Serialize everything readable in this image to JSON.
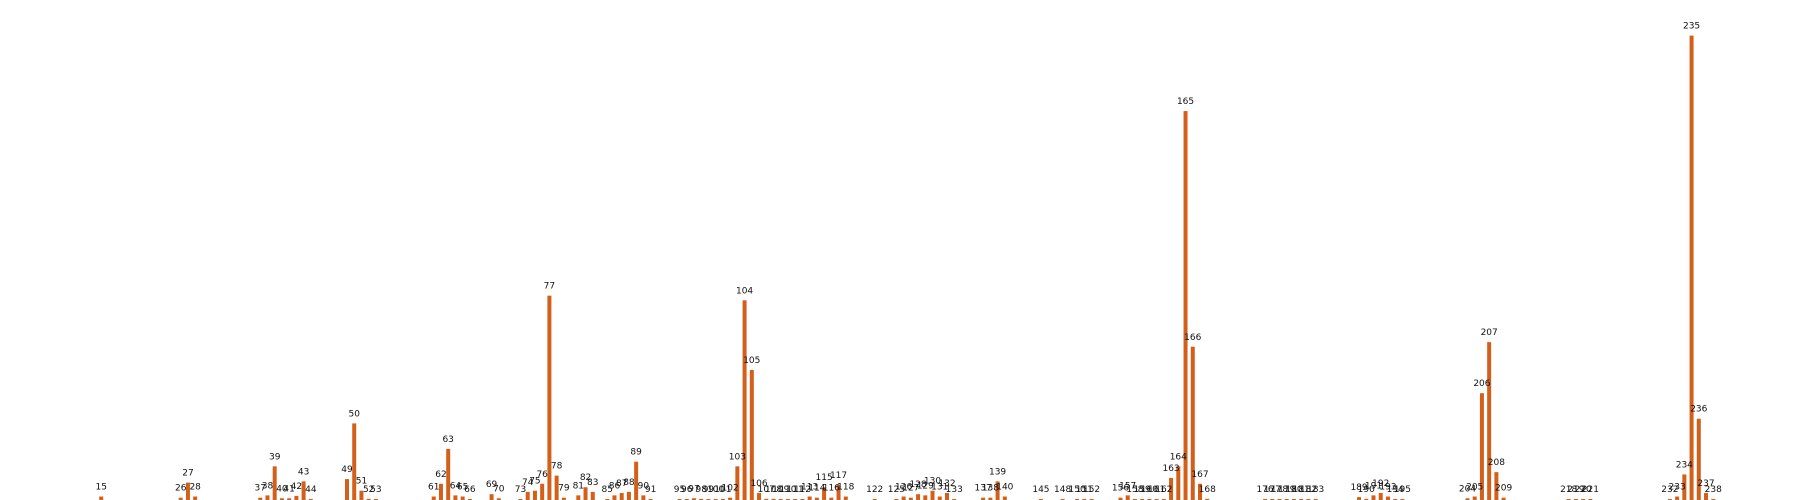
{
  "chart_data": {
    "type": "bar",
    "title": "",
    "xlabel": "",
    "ylabel": "",
    "grid": false,
    "legend": "none",
    "categories": [
      "15",
      "26",
      "27",
      "28",
      "37",
      "38",
      "39",
      "40",
      "41",
      "42",
      "43",
      "44",
      "49",
      "50",
      "51",
      "52",
      "53",
      "61",
      "62",
      "63",
      "64",
      "65",
      "66",
      "69",
      "70",
      "73",
      "74",
      "75",
      "76",
      "77",
      "78",
      "79",
      "81",
      "82",
      "83",
      "85",
      "86",
      "87",
      "88",
      "89",
      "90",
      "91",
      "95",
      "96",
      "97",
      "98",
      "99",
      "100",
      "101",
      "102",
      "103",
      "104",
      "105",
      "106",
      "107",
      "108",
      "109",
      "110",
      "111",
      "112",
      "113",
      "114",
      "115",
      "116",
      "117",
      "118",
      "122",
      "125",
      "126",
      "127",
      "128",
      "129",
      "130",
      "131",
      "132",
      "133",
      "137",
      "138",
      "139",
      "140",
      "145",
      "148",
      "150",
      "151",
      "152",
      "156",
      "157",
      "158",
      "159",
      "160",
      "161",
      "162",
      "163",
      "164",
      "165",
      "166",
      "167",
      "168",
      "176",
      "177",
      "178",
      "179",
      "180",
      "181",
      "182",
      "183",
      "189",
      "190",
      "191",
      "192",
      "193",
      "194",
      "195",
      "204",
      "205",
      "206",
      "207",
      "208",
      "209",
      "218",
      "219",
      "220",
      "221",
      "232",
      "233",
      "234",
      "235",
      "236",
      "237",
      "238"
    ],
    "x": [
      15,
      26,
      27,
      28,
      37,
      38,
      39,
      40,
      41,
      42,
      43,
      44,
      49,
      50,
      51,
      52,
      53,
      61,
      62,
      63,
      64,
      65,
      66,
      69,
      70,
      73,
      74,
      75,
      76,
      77,
      78,
      79,
      81,
      82,
      83,
      85,
      86,
      87,
      88,
      89,
      90,
      91,
      95,
      96,
      97,
      98,
      99,
      100,
      101,
      102,
      103,
      104,
      105,
      106,
      107,
      108,
      109,
      110,
      111,
      112,
      113,
      114,
      115,
      116,
      117,
      118,
      122,
      125,
      126,
      127,
      128,
      129,
      130,
      131,
      132,
      133,
      137,
      138,
      139,
      140,
      145,
      148,
      150,
      151,
      152,
      156,
      157,
      158,
      159,
      160,
      161,
      162,
      163,
      164,
      165,
      166,
      167,
      168,
      176,
      177,
      178,
      179,
      180,
      181,
      182,
      183,
      189,
      190,
      191,
      192,
      193,
      194,
      195,
      204,
      205,
      206,
      207,
      208,
      209,
      218,
      219,
      220,
      221,
      232,
      233,
      234,
      235,
      236,
      237,
      238
    ],
    "values": [
      0.3,
      0.2,
      1.5,
      0.3,
      0.2,
      0.4,
      2.9,
      0.15,
      0.15,
      0.35,
      1.6,
      0.05,
      1.8,
      6.6,
      0.8,
      0.1,
      0.05,
      0.3,
      1.4,
      4.4,
      0.4,
      0.3,
      0.02,
      0.5,
      0.15,
      0.05,
      0.7,
      0.8,
      1.4,
      17.6,
      2.1,
      0.2,
      0.4,
      1.1,
      0.7,
      0.05,
      0.4,
      0.6,
      0.7,
      3.3,
      0.4,
      0.05,
      0.05,
      0.05,
      0.15,
      0.1,
      0.05,
      0.05,
      0.05,
      0.2,
      2.9,
      17.2,
      11.2,
      0.6,
      0.1,
      0.1,
      0.05,
      0.05,
      0.05,
      0.05,
      0.3,
      0.2,
      1.1,
      0.2,
      1.3,
      0.3,
      0.05,
      0.05,
      0.3,
      0.2,
      0.5,
      0.4,
      0.8,
      0.3,
      0.6,
      0.05,
      0.2,
      0.2,
      1.6,
      0.3,
      0.05,
      0.05,
      0.05,
      0.05,
      0.05,
      0.2,
      0.4,
      0.05,
      0.05,
      0.05,
      0.05,
      0.05,
      1.9,
      2.9,
      33.5,
      13.2,
      1.4,
      0.1,
      0.05,
      0.05,
      0.05,
      0.05,
      0.05,
      0.05,
      0.05,
      0.05,
      0.25,
      0.1,
      0.4,
      0.6,
      0.3,
      0.05,
      0.05,
      0.15,
      0.3,
      9.2,
      13.6,
      2.4,
      0.2,
      0.05,
      0.05,
      0.05,
      0.05,
      0.05,
      0.3,
      2.2,
      40.0,
      7.0,
      0.6,
      0.05
    ],
    "ylim": [
      0,
      41
    ],
    "xlim": [
      1,
      250
    ],
    "bar_color": "#d2601a",
    "label_color": "#111111",
    "background": "#ffffff"
  }
}
